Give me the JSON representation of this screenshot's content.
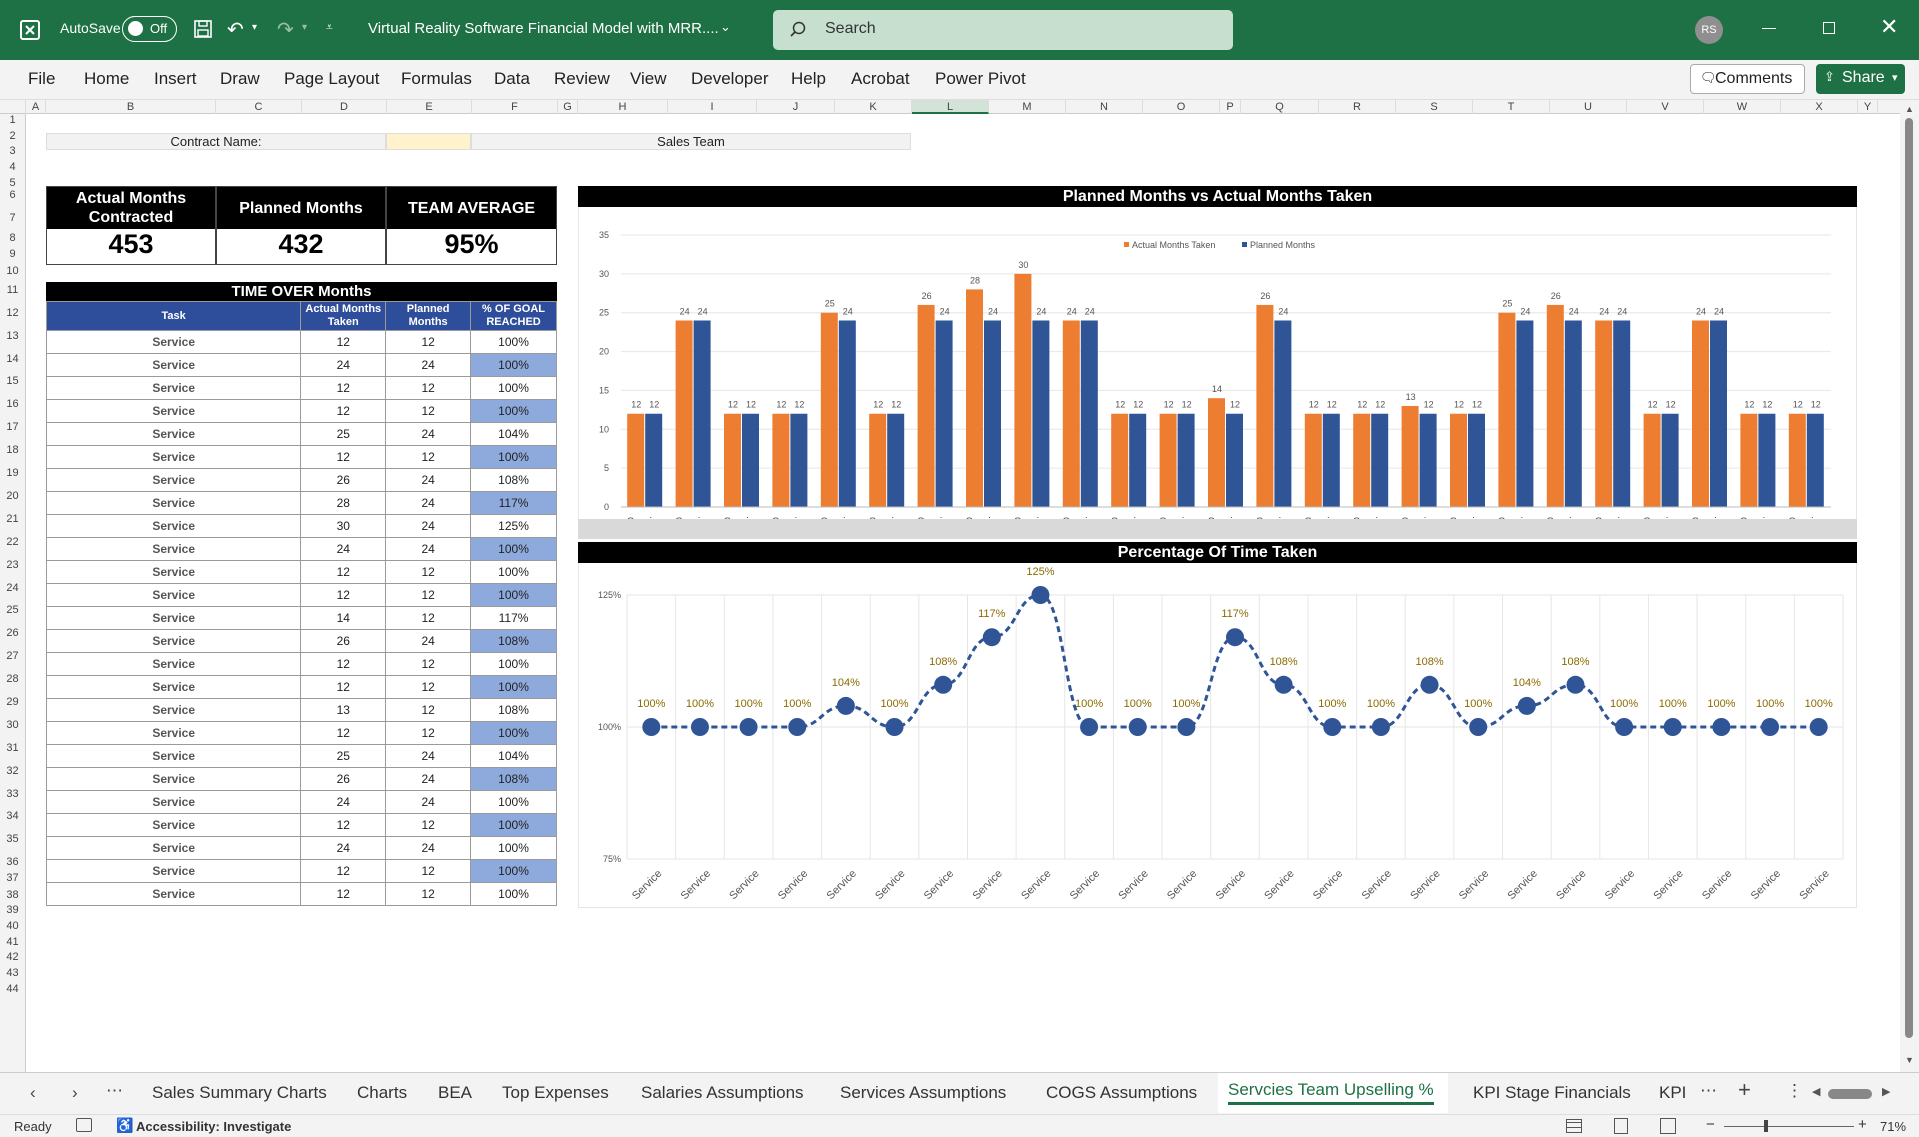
{
  "titlebar": {
    "autosave_label": "AutoSave",
    "autosave_state": "Off",
    "doc_title": "Virtual Reality Software Financial Model with MRR....",
    "search_placeholder": "Search",
    "user_initials": "RS"
  },
  "menu": [
    "File",
    "Home",
    "Insert",
    "Draw",
    "Page Layout",
    "Formulas",
    "Data",
    "Review",
    "View",
    "Developer",
    "Help",
    "Acrobat",
    "Power Pivot"
  ],
  "ribbon_buttons": {
    "comments": "Comments",
    "share": "Share"
  },
  "columns": [
    "A",
    "B",
    "C",
    "D",
    "E",
    "F",
    "G",
    "H",
    "I",
    "J",
    "K",
    "L",
    "M",
    "N",
    "O",
    "P",
    "Q",
    "R",
    "S",
    "T",
    "U",
    "V",
    "W",
    "X",
    "Y"
  ],
  "rows": [
    "1",
    "2",
    "3",
    "4",
    "5",
    "6",
    "7",
    "8",
    "9",
    "10",
    "11",
    "12",
    "13",
    "14",
    "15",
    "16",
    "17",
    "18",
    "19",
    "20",
    "21",
    "22",
    "23",
    "24",
    "25",
    "26",
    "27",
    "28",
    "29",
    "30",
    "31",
    "32",
    "33",
    "34",
    "35",
    "36",
    "37",
    "38",
    "39",
    "40",
    "41",
    "42",
    "43",
    "44"
  ],
  "contract": {
    "label": "Contract Name:",
    "team": "Sales Team"
  },
  "kpis": [
    {
      "label": "Actual Months Contracted",
      "value": "453"
    },
    {
      "label": "Planned Months",
      "value": "432"
    },
    {
      "label": "TEAM AVERAGE",
      "value": "95%"
    }
  ],
  "table": {
    "title": "TIME OVER Months",
    "headers": [
      "Task",
      "Actual Months Taken",
      "Planned Months",
      "% OF GOAL REACHED"
    ],
    "rows": [
      [
        "Service",
        "12",
        "12",
        "100%"
      ],
      [
        "Service",
        "24",
        "24",
        "100%"
      ],
      [
        "Service",
        "12",
        "12",
        "100%"
      ],
      [
        "Service",
        "12",
        "12",
        "100%"
      ],
      [
        "Service",
        "25",
        "24",
        "104%"
      ],
      [
        "Service",
        "12",
        "12",
        "100%"
      ],
      [
        "Service",
        "26",
        "24",
        "108%"
      ],
      [
        "Service",
        "28",
        "24",
        "117%"
      ],
      [
        "Service",
        "30",
        "24",
        "125%"
      ],
      [
        "Service",
        "24",
        "24",
        "100%"
      ],
      [
        "Service",
        "12",
        "12",
        "100%"
      ],
      [
        "Service",
        "12",
        "12",
        "100%"
      ],
      [
        "Service",
        "14",
        "12",
        "117%"
      ],
      [
        "Service",
        "26",
        "24",
        "108%"
      ],
      [
        "Service",
        "12",
        "12",
        "100%"
      ],
      [
        "Service",
        "12",
        "12",
        "100%"
      ],
      [
        "Service",
        "13",
        "12",
        "108%"
      ],
      [
        "Service",
        "12",
        "12",
        "100%"
      ],
      [
        "Service",
        "25",
        "24",
        "104%"
      ],
      [
        "Service",
        "26",
        "24",
        "108%"
      ],
      [
        "Service",
        "24",
        "24",
        "100%"
      ],
      [
        "Service",
        "12",
        "12",
        "100%"
      ],
      [
        "Service",
        "24",
        "24",
        "100%"
      ],
      [
        "Service",
        "12",
        "12",
        "100%"
      ],
      [
        "Service",
        "12",
        "12",
        "100%"
      ]
    ]
  },
  "chart_data": [
    {
      "type": "bar",
      "title": "Planned Months vs Actual Months Taken",
      "categories": [
        "Service",
        "Service",
        "Service",
        "Service",
        "Service",
        "Service",
        "Service",
        "Service",
        "Service",
        "Service",
        "Service",
        "Service",
        "Service",
        "Service",
        "Service",
        "Service",
        "Service",
        "Service",
        "Service",
        "Service",
        "Service",
        "Service",
        "Service",
        "Service",
        "Service"
      ],
      "series": [
        {
          "name": "Actual Months Taken",
          "color": "#ed7d31",
          "values": [
            12,
            24,
            12,
            12,
            25,
            12,
            26,
            28,
            30,
            24,
            12,
            12,
            14,
            26,
            12,
            12,
            13,
            12,
            25,
            26,
            24,
            12,
            24,
            12,
            12
          ]
        },
        {
          "name": "Planned Months",
          "color": "#2f5597",
          "values": [
            12,
            24,
            12,
            12,
            24,
            12,
            24,
            24,
            24,
            24,
            12,
            12,
            12,
            24,
            12,
            12,
            12,
            12,
            24,
            24,
            24,
            12,
            24,
            12,
            12
          ]
        }
      ],
      "ylim": [
        0,
        35
      ],
      "yticks": [
        0,
        5,
        10,
        15,
        20,
        25,
        30,
        35
      ],
      "grid": true,
      "legend": "top"
    },
    {
      "type": "line",
      "title": "Percentage Of Time Taken",
      "categories": [
        "Service",
        "Service",
        "Service",
        "Service",
        "Service",
        "Service",
        "Service",
        "Service",
        "Service",
        "Service",
        "Service",
        "Service",
        "Service",
        "Service",
        "Service",
        "Service",
        "Service",
        "Service",
        "Service",
        "Service",
        "Service",
        "Service",
        "Service",
        "Service",
        "Service"
      ],
      "series": [
        {
          "color": "#2f5597",
          "values": [
            100,
            100,
            100,
            100,
            104,
            100,
            108,
            117,
            125,
            100,
            100,
            100,
            117,
            108,
            100,
            100,
            108,
            100,
            104,
            108,
            100,
            100,
            100,
            100,
            100
          ]
        }
      ],
      "labels": [
        "100%",
        "100%",
        "100%",
        "100%",
        "104%",
        "100%",
        "108%",
        "117%",
        "125%",
        "100%",
        "100%",
        "100%",
        "117%",
        "108%",
        "100%",
        "100%",
        "108%",
        "100%",
        "104%",
        "108%",
        "100%",
        "100%",
        "100%",
        "100%",
        "100%"
      ],
      "ylim": [
        75,
        125
      ],
      "yticks": [
        "75%",
        "100%",
        "125%"
      ],
      "grid": true
    }
  ],
  "sheet_tabs": [
    "Sales Summary Charts",
    "Charts",
    "BEA",
    "Top Expenses",
    "Salaries Assumptions",
    "Services Assumptions",
    "COGS Assumptions",
    "Servcies Team Upselling %",
    "KPI Stage Financials",
    "KPI"
  ],
  "active_tab": "Servcies Team Upselling %",
  "status": {
    "ready": "Ready",
    "accessibility": "Accessibility: Investigate",
    "zoom": "71%"
  }
}
